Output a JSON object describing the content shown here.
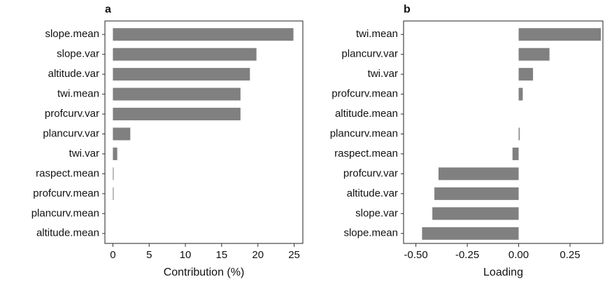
{
  "chart_data": [
    {
      "type": "barh",
      "title": "a",
      "x_label": "Contribution (%)",
      "color": "#808080",
      "categories": [
        "slope.mean",
        "slope.var",
        "altitude.var",
        "twi.mean",
        "profcurv.var",
        "plancurv.var",
        "twi.var",
        "raspect.mean",
        "profcurv.mean",
        "plancurv.mean",
        "altitude.mean"
      ],
      "values": [
        24.9,
        19.8,
        18.9,
        17.6,
        17.6,
        2.4,
        0.6,
        0.1,
        0.1,
        0,
        0
      ],
      "xlim": [
        -1.1,
        26.2
      ],
      "xticks": [
        0,
        5,
        10,
        15,
        20,
        25
      ],
      "grid": false
    },
    {
      "type": "barh",
      "title": "b",
      "x_label": "Loading",
      "color": "#808080",
      "categories": [
        "twi.mean",
        "plancurv.var",
        "twi.var",
        "profcurv.mean",
        "altitude.mean",
        "plancurv.mean",
        "raspect.mean",
        "profcurv.var",
        "altitude.var",
        "slope.var",
        "slope.mean"
      ],
      "values": [
        0.4,
        0.15,
        0.07,
        0.02,
        0,
        0.005,
        -0.03,
        -0.39,
        -0.41,
        -0.42,
        -0.47
      ],
      "xlim": [
        -0.56,
        0.41
      ],
      "xticks": [
        {
          "value": -0.5,
          "label": "-0.50"
        },
        -0.25,
        {
          "value": 0,
          "label": "0.00"
        },
        0.25
      ],
      "grid": false
    }
  ]
}
